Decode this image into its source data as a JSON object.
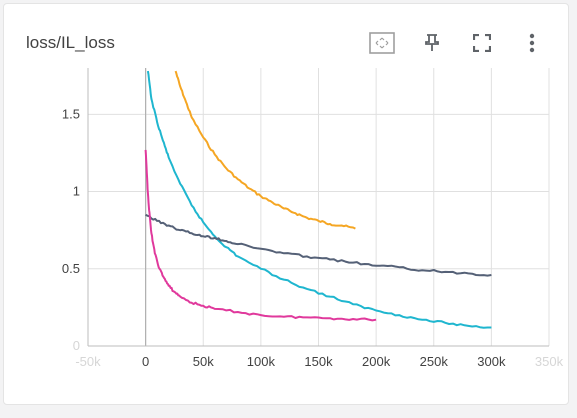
{
  "card": {
    "title": "loss/IL_loss"
  },
  "toolbar": [
    {
      "name": "fit-domain-button",
      "icon": "fit-domain-icon"
    },
    {
      "name": "pin-button",
      "icon": "pin-icon"
    },
    {
      "name": "fullscreen-button",
      "icon": "fullscreen-icon"
    },
    {
      "name": "more-options-button",
      "icon": "more-vert-icon"
    }
  ],
  "chart_data": {
    "type": "line",
    "title": "loss/IL_loss",
    "xlabel": "",
    "ylabel": "",
    "xlim": [
      -50000,
      350000
    ],
    "ylim": [
      0,
      1.8
    ],
    "grid": true,
    "x_ticks": [
      {
        "value": -50000,
        "label": "-50k",
        "faint": true
      },
      {
        "value": 0,
        "label": "0"
      },
      {
        "value": 50000,
        "label": "50k"
      },
      {
        "value": 100000,
        "label": "100k"
      },
      {
        "value": 150000,
        "label": "150k"
      },
      {
        "value": 200000,
        "label": "200k"
      },
      {
        "value": 250000,
        "label": "250k"
      },
      {
        "value": 300000,
        "label": "300k"
      },
      {
        "value": 350000,
        "label": "350k",
        "faint": true
      }
    ],
    "y_ticks": [
      {
        "value": 0,
        "label": "0",
        "faint": true
      },
      {
        "value": 0.5,
        "label": "0.5"
      },
      {
        "value": 1,
        "label": "1"
      },
      {
        "value": 1.5,
        "label": "1.5"
      }
    ],
    "series": [
      {
        "color": "#f5a623",
        "x": [
          26000,
          30000,
          35000,
          40000,
          50000,
          60000,
          70000,
          80000,
          90000,
          100000,
          110000,
          120000,
          130000,
          140000,
          150000,
          160000,
          170000,
          182000
        ],
        "y": [
          1.78,
          1.68,
          1.58,
          1.48,
          1.35,
          1.24,
          1.15,
          1.08,
          1.02,
          0.97,
          0.93,
          0.89,
          0.86,
          0.83,
          0.81,
          0.79,
          0.78,
          0.76
        ]
      },
      {
        "color": "#1fb6cf",
        "x": [
          2000,
          5000,
          10000,
          15000,
          20000,
          30000,
          40000,
          50000,
          60000,
          70000,
          80000,
          100000,
          120000,
          140000,
          160000,
          180000,
          200000,
          220000,
          240000,
          260000,
          280000,
          300000
        ],
        "y": [
          1.78,
          1.6,
          1.45,
          1.33,
          1.22,
          1.05,
          0.91,
          0.8,
          0.71,
          0.64,
          0.58,
          0.5,
          0.43,
          0.37,
          0.32,
          0.27,
          0.23,
          0.2,
          0.17,
          0.15,
          0.13,
          0.12
        ]
      },
      {
        "color": "#556177",
        "x": [
          0,
          10000,
          20000,
          30000,
          40000,
          50000,
          60000,
          70000,
          80000,
          100000,
          120000,
          140000,
          160000,
          180000,
          200000,
          220000,
          240000,
          260000,
          280000,
          300000
        ],
        "y": [
          0.85,
          0.81,
          0.78,
          0.75,
          0.73,
          0.71,
          0.7,
          0.68,
          0.66,
          0.63,
          0.6,
          0.58,
          0.56,
          0.54,
          0.52,
          0.51,
          0.49,
          0.48,
          0.47,
          0.46
        ]
      },
      {
        "color": "#e0399c",
        "x": [
          0,
          1500,
          3000,
          5000,
          8000,
          12000,
          16000,
          20000,
          25000,
          30000,
          40000,
          50000,
          60000,
          80000,
          100000,
          120000,
          140000,
          160000,
          180000,
          200000
        ],
        "y": [
          1.27,
          1.05,
          0.88,
          0.73,
          0.6,
          0.5,
          0.44,
          0.39,
          0.35,
          0.32,
          0.28,
          0.26,
          0.24,
          0.22,
          0.2,
          0.19,
          0.185,
          0.18,
          0.175,
          0.17
        ]
      }
    ]
  }
}
